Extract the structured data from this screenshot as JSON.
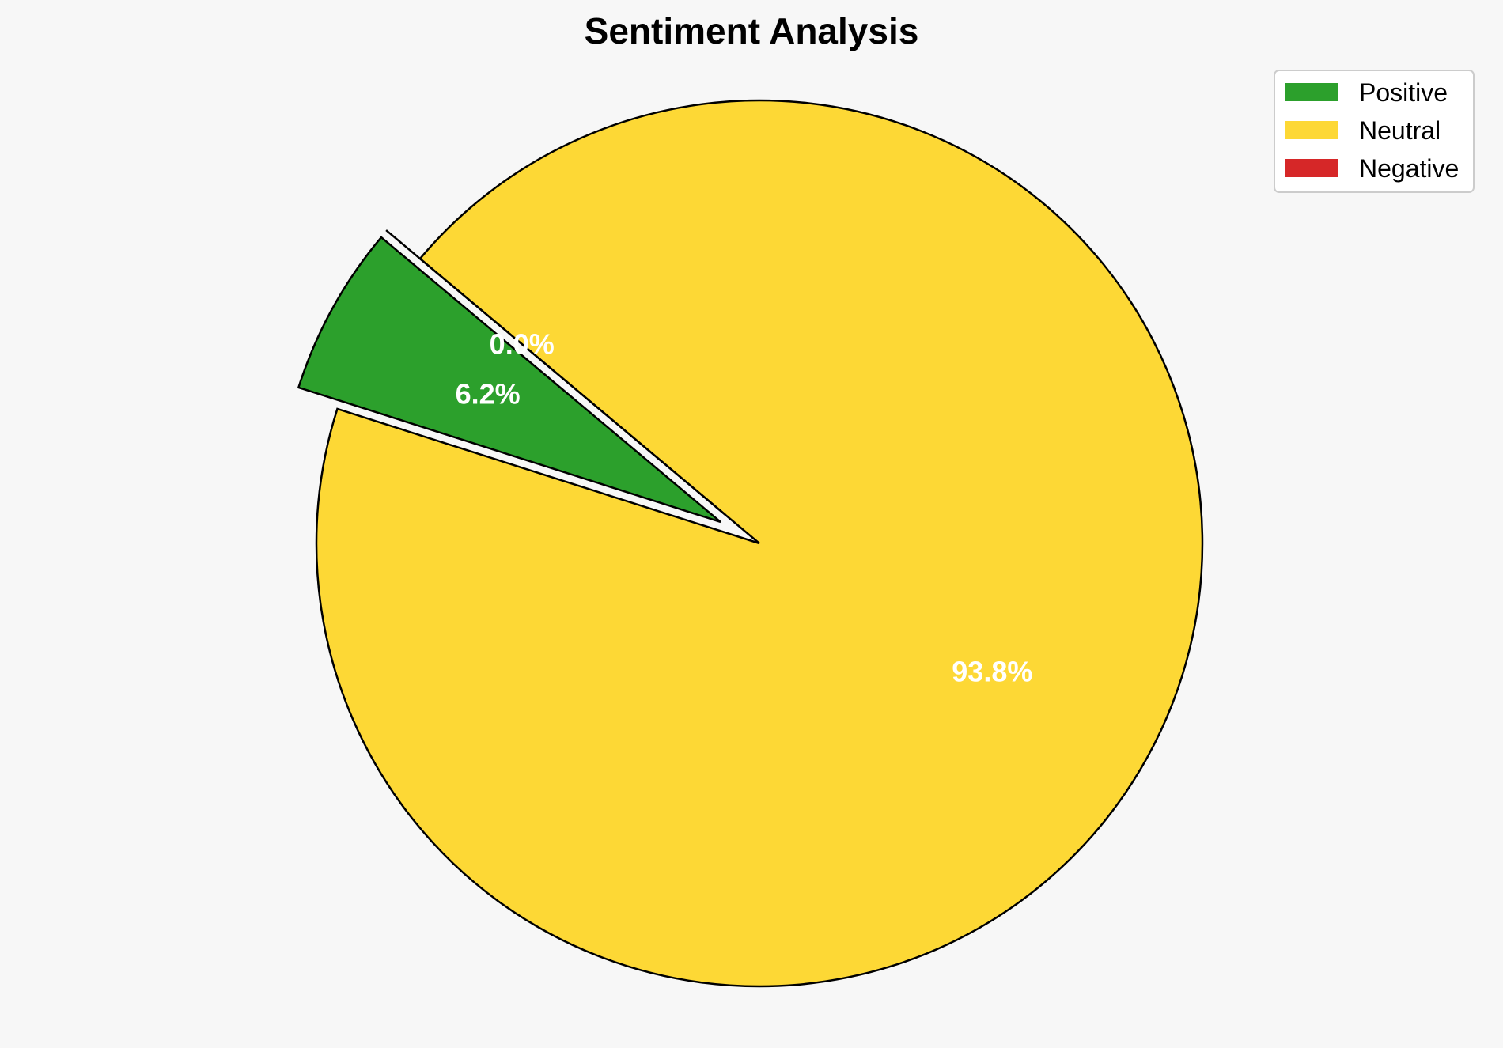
{
  "chart_data": {
    "type": "pie",
    "title": "Sentiment Analysis",
    "slices": [
      {
        "label": "Positive",
        "percent": 6.2,
        "display": "6.2%",
        "color": "#2ca02c",
        "exploded": true
      },
      {
        "label": "Neutral",
        "percent": 93.8,
        "display": "93.8%",
        "color": "#fdd835",
        "exploded": false
      },
      {
        "label": "Negative",
        "percent": 0.0,
        "display": "0.0%",
        "color": "#d62728",
        "exploded": true
      }
    ],
    "label_color": "#ffffff",
    "edge_color": "#000000",
    "legend": {
      "placement": "top-right",
      "entries": [
        "Positive",
        "Neutral",
        "Negative"
      ]
    }
  }
}
